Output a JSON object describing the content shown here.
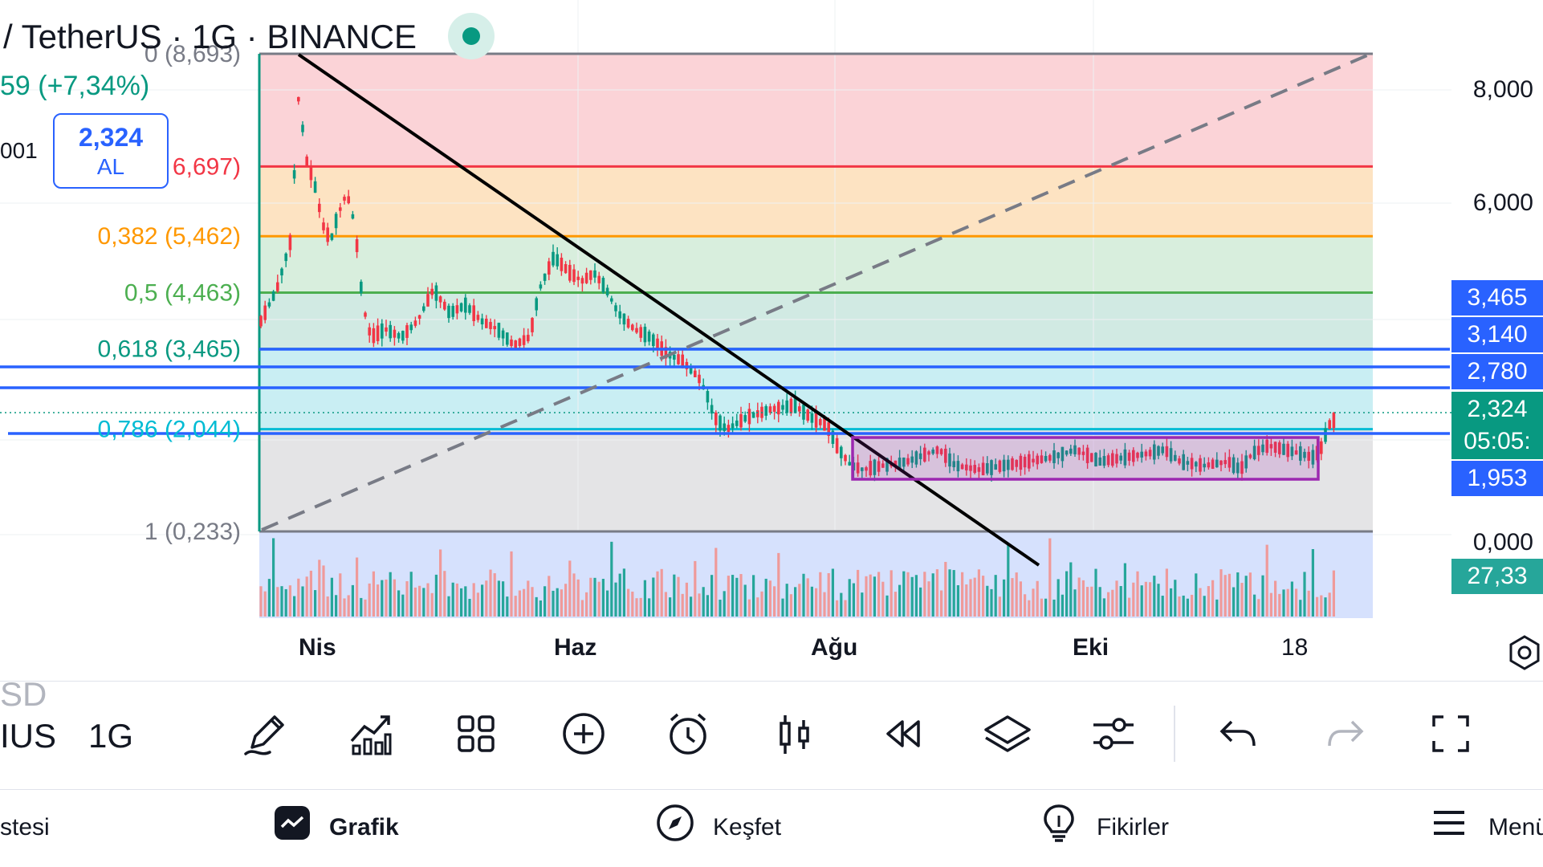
{
  "header": {
    "symbol": "/ TetherUS · 1G · BINANCE",
    "change": "59 (+7,34%)",
    "partial_value": "001",
    "buy_price": "2,324",
    "buy_label": "AL"
  },
  "fib_levels": [
    {
      "label": "0 (8,693)",
      "value": 8.693,
      "color": "#787b86"
    },
    {
      "label": "6,697)",
      "value": 6.697,
      "color": "#f23645"
    },
    {
      "label": "0,382 (5,462)",
      "value": 5.462,
      "color": "#ff9800"
    },
    {
      "label": "0,5 (4,463)",
      "value": 4.463,
      "color": "#4caf50"
    },
    {
      "label": "0,618 (3,465)",
      "value": 3.465,
      "color": "#089981"
    },
    {
      "label": "0,786 (2,044)",
      "value": 2.044,
      "color": "#00bcd4"
    },
    {
      "label": "1 (0,233)",
      "value": 0.233,
      "color": "#787b86"
    }
  ],
  "price_axis": {
    "ticks": [
      "8,000",
      "6,000",
      "0,000"
    ],
    "badges": [
      {
        "text": "3,465",
        "color": "#2962ff"
      },
      {
        "text": "3,140",
        "color": "#2962ff"
      },
      {
        "text": "2,780",
        "color": "#2962ff"
      },
      {
        "text": "2,324",
        "color": "#089981"
      },
      {
        "text": "05:05:",
        "color": "#089981"
      },
      {
        "text": "1,953",
        "color": "#2962ff"
      },
      {
        "text": "27,33",
        "color": "#26a69a"
      }
    ]
  },
  "time_axis": [
    "Nis",
    "Haz",
    "Ağu",
    "Eki",
    "18"
  ],
  "toolbar": {
    "left_top": "SD",
    "left_mid": "IUS",
    "interval": "1G",
    "icons": [
      "pencil-icon",
      "indicators-icon",
      "grid-icon",
      "plus-circle-icon",
      "alarm-icon",
      "candles-icon",
      "replay-icon",
      "layers-icon",
      "settings-sliders-icon",
      "undo-icon",
      "redo-icon",
      "fullscreen-icon"
    ]
  },
  "nav": {
    "items": [
      {
        "label": "stesi"
      },
      {
        "label": "Grafik"
      },
      {
        "label": "Keşfet"
      },
      {
        "label": "Fikirler"
      },
      {
        "label": "Menü"
      }
    ]
  },
  "colors": {
    "up": "#089981",
    "down": "#f23645",
    "blue": "#2962ff",
    "purple": "#9c27b0"
  }
}
